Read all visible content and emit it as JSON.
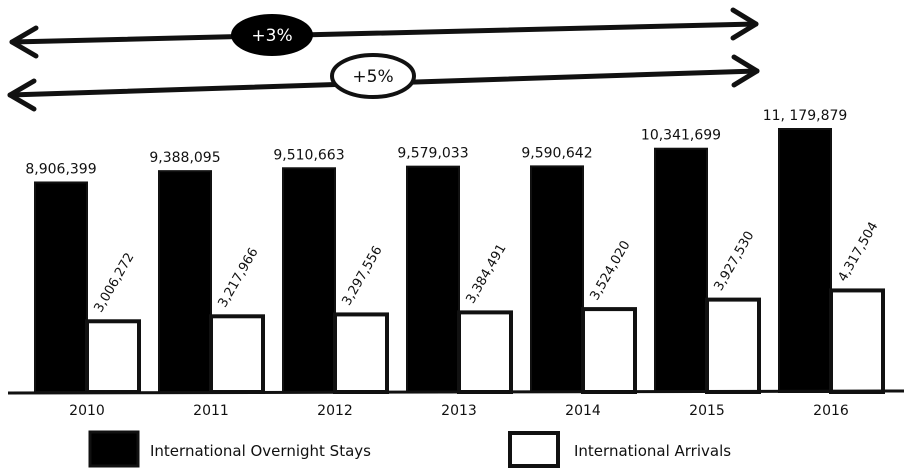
{
  "chart_data": {
    "type": "bar",
    "categories": [
      "2010",
      "2011",
      "2012",
      "2013",
      "2014",
      "2015",
      "2016"
    ],
    "series": [
      {
        "name": "International Overnight Stays",
        "values": [
          8906399,
          9388095,
          9510663,
          9579033,
          9590642,
          10341699,
          11179879
        ],
        "labels": [
          "8,906,399",
          "9,388,095",
          "9,510,663",
          "9,579,033",
          "9,590,642",
          "10,341,699",
          "11, 179,879"
        ],
        "fill": "#000000"
      },
      {
        "name": "International Arrivals",
        "values": [
          3006272,
          3217966,
          3297556,
          3384491,
          3524020,
          3927530,
          4317504
        ],
        "labels": [
          "3,006,272",
          "3,217,966",
          "3,297,556",
          "3,384,491",
          "3,524,020",
          "3,927,530",
          "4,317,504"
        ],
        "fill": "#ffffff"
      }
    ],
    "annotations": [
      {
        "text": "+3%",
        "style": "filled"
      },
      {
        "text": "+5%",
        "style": "outlined"
      }
    ],
    "title": "",
    "xlabel": "",
    "ylabel": "",
    "ylim": [
      0,
      11179879
    ],
    "grid": false,
    "legend": "bottom"
  }
}
